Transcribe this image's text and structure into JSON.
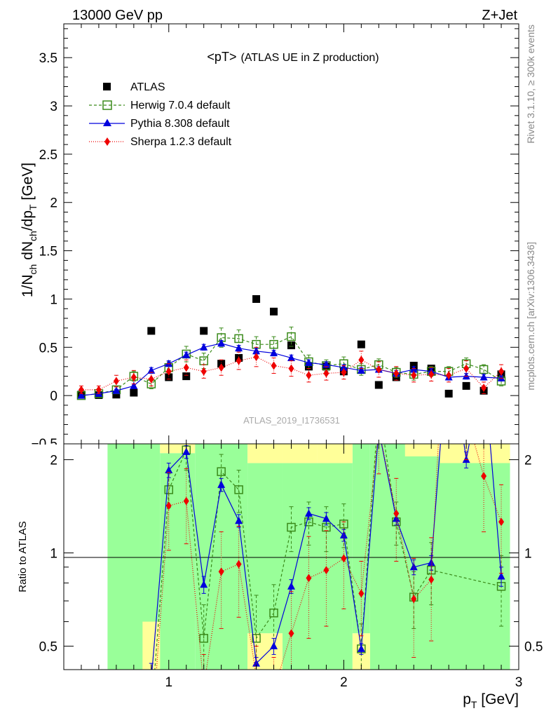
{
  "header": {
    "energy_label": "13000 GeV pp",
    "process_label": "Z+Jet"
  },
  "side_text": {
    "rivet": "Rivet 3.1.10, ≥ 300k events",
    "mcplots": "mcplots.cern.ch [arXiv:1306.3436]"
  },
  "analysis_id": "ATLAS_2019_I1736531",
  "colors": {
    "atlas": "#000000",
    "herwig": "#3a8a1a",
    "pythia": "#0000dd",
    "sherpa": "#ee0000",
    "band_green": "#99ff99",
    "band_yellow": "#ffff99"
  },
  "chart_data": [
    {
      "type": "line",
      "title": "<pT> (ATLAS UE in Z production)",
      "title_main": "<pT>",
      "title_sub": "(ATLAS UE in Z production)",
      "ylabel": "1/N_ch dN_ch/dp_T [GeV]",
      "ylabel_parts": {
        "main": "1/N",
        "s1": "ch",
        "mid": " dN",
        "s2": "ch",
        "mid2": "/dp",
        "s3": "T",
        "unit": " [GeV]"
      },
      "xlim": [
        0.4,
        3.0
      ],
      "ylim": [
        -0.5,
        3.85
      ],
      "yticks": [
        0,
        0.5,
        1,
        1.5,
        2,
        2.5,
        3,
        3.5
      ],
      "yticklabels": [
        "0",
        "0.5",
        "1",
        "1.5",
        "2",
        "2.5",
        "3",
        "3.5"
      ],
      "x": [
        0.5,
        0.6,
        0.7,
        0.8,
        0.9,
        1.0,
        1.1,
        1.2,
        1.3,
        1.4,
        1.5,
        1.6,
        1.7,
        1.8,
        1.9,
        2.0,
        2.1,
        2.2,
        2.3,
        2.4,
        2.5,
        2.6,
        2.7,
        2.8,
        2.9
      ],
      "series": [
        {
          "name": "ATLAS",
          "key": "atlas",
          "style": "marker",
          "values": [
            0.01,
            0.005,
            0.01,
            0.03,
            0.67,
            0.19,
            0.2,
            0.67,
            0.33,
            0.39,
            1.0,
            0.87,
            0.52,
            0.3,
            0.3,
            0.25,
            0.53,
            0.11,
            0.19,
            0.31,
            0.28,
            0.02,
            0.1,
            0.05,
            0.22
          ]
        },
        {
          "name": "Herwig 7.0.4 default",
          "key": "herwig",
          "style": "dashed",
          "values": [
            0.0,
            0.02,
            0.06,
            0.2,
            0.12,
            0.29,
            0.43,
            0.36,
            0.6,
            0.59,
            0.53,
            0.53,
            0.61,
            0.35,
            0.31,
            0.33,
            0.27,
            0.32,
            0.24,
            0.22,
            0.25,
            0.25,
            0.33,
            0.27,
            0.15
          ],
          "errors": [
            0.01,
            0.02,
            0.03,
            0.05,
            0.05,
            0.06,
            0.08,
            0.08,
            0.1,
            0.09,
            0.08,
            0.08,
            0.1,
            0.07,
            0.06,
            0.07,
            0.06,
            0.06,
            0.05,
            0.06,
            0.05,
            0.05,
            0.06,
            0.05,
            0.05
          ]
        },
        {
          "name": "Pythia 8.308 default",
          "key": "pythia",
          "style": "solid",
          "values": [
            0.0,
            0.02,
            0.05,
            0.1,
            0.26,
            0.33,
            0.42,
            0.5,
            0.54,
            0.49,
            0.46,
            0.44,
            0.39,
            0.34,
            0.32,
            0.29,
            0.26,
            0.27,
            0.23,
            0.27,
            0.25,
            0.19,
            0.2,
            0.19,
            0.18
          ],
          "errors": [
            0.005,
            0.01,
            0.015,
            0.02,
            0.03,
            0.03,
            0.03,
            0.03,
            0.03,
            0.03,
            0.03,
            0.03,
            0.03,
            0.03,
            0.03,
            0.03,
            0.03,
            0.03,
            0.03,
            0.03,
            0.03,
            0.03,
            0.03,
            0.03,
            0.03
          ]
        },
        {
          "name": "Sherpa 1.2.3 default",
          "key": "sherpa",
          "style": "dotted",
          "values": [
            0.06,
            0.06,
            0.15,
            0.19,
            0.17,
            0.25,
            0.29,
            0.25,
            0.29,
            0.36,
            0.4,
            0.31,
            0.28,
            0.21,
            0.23,
            0.24,
            0.37,
            0.27,
            0.23,
            0.21,
            0.22,
            0.21,
            0.28,
            0.08,
            0.25
          ],
          "errors": [
            0.04,
            0.04,
            0.06,
            0.07,
            0.07,
            0.08,
            0.08,
            0.07,
            0.08,
            0.09,
            0.1,
            0.08,
            0.08,
            0.07,
            0.07,
            0.07,
            0.09,
            0.08,
            0.07,
            0.07,
            0.07,
            0.07,
            0.08,
            0.06,
            0.07
          ]
        }
      ],
      "legend_position": "top-left",
      "grid": false
    },
    {
      "type": "line",
      "ylabel": "Ratio to ATLAS",
      "xlabel": "p_T [GeV]",
      "xlabel_parts": {
        "main": "p",
        "sub": "T",
        "unit": " [GeV]"
      },
      "xlim": [
        0.4,
        3.0
      ],
      "ylim": [
        0.42,
        2.25
      ],
      "ylog": true,
      "xticks": [
        1,
        2,
        3
      ],
      "xticklabels": [
        "1",
        "2",
        "3"
      ],
      "yticks": [
        0.5,
        1,
        2
      ],
      "yticklabels": [
        "0.5",
        "1",
        "2"
      ],
      "reference_line": 1,
      "x": [
        0.5,
        0.6,
        0.7,
        0.8,
        0.9,
        1.0,
        1.1,
        1.2,
        1.3,
        1.4,
        1.5,
        1.6,
        1.7,
        1.8,
        1.9,
        2.0,
        2.1,
        2.2,
        2.3,
        2.4,
        2.5,
        2.6,
        2.7,
        2.8,
        2.9
      ],
      "band_green": [
        [
          0.65,
          0.95,
          0.42,
          2.25
        ],
        [
          0.95,
          1.15,
          0.42,
          2.1
        ],
        [
          1.15,
          1.45,
          0.42,
          2.25
        ],
        [
          1.45,
          1.65,
          0.55,
          1.95
        ],
        [
          1.65,
          2.05,
          0.42,
          1.95
        ],
        [
          2.05,
          2.15,
          0.55,
          2.25
        ],
        [
          2.15,
          2.95,
          0.42,
          2.25
        ]
      ],
      "band_yellow": [
        [
          0.85,
          0.95,
          0.42,
          0.6
        ],
        [
          0.95,
          1.15,
          2.1,
          2.25
        ],
        [
          1.45,
          1.65,
          0.42,
          0.55
        ],
        [
          1.45,
          1.65,
          1.95,
          2.25
        ],
        [
          1.65,
          1.85,
          1.95,
          2.25
        ],
        [
          1.85,
          2.05,
          1.95,
          2.25
        ],
        [
          2.05,
          2.15,
          0.42,
          0.55
        ],
        [
          2.35,
          2.55,
          2.05,
          2.25
        ],
        [
          2.55,
          2.95,
          1.95,
          2.25
        ]
      ],
      "series": [
        {
          "name": "Herwig 7.0.4 default",
          "key": "herwig",
          "style": "dashed",
          "values": [
            null,
            null,
            null,
            null,
            0.3,
            1.6,
            2.15,
            0.53,
            1.83,
            1.6,
            0.53,
            0.64,
            1.21,
            1.26,
            1.21,
            1.24,
            0.49,
            3.0,
            1.26,
            0.72,
            0.88,
            null,
            null,
            null,
            0.78
          ],
          "errors": [
            0,
            0,
            0,
            0,
            0.1,
            0.2,
            0.3,
            0.15,
            0.25,
            0.25,
            0.2,
            0.15,
            0.2,
            0.2,
            0.2,
            0.2,
            0.1,
            0.5,
            0.2,
            0.15,
            0.2,
            0,
            0,
            0,
            0.2
          ]
        },
        {
          "name": "Pythia 8.308 default",
          "key": "pythia",
          "style": "solid",
          "values": [
            null,
            null,
            null,
            null,
            0.39,
            1.85,
            2.12,
            0.79,
            1.66,
            1.27,
            0.44,
            0.5,
            0.78,
            1.34,
            1.29,
            1.14,
            0.49,
            2.5,
            1.29,
            0.9,
            0.93,
            5.0,
            2.0,
            4.0,
            0.84
          ],
          "errors": [
            0,
            0,
            0,
            0,
            0.05,
            0.1,
            0.1,
            0.05,
            0.08,
            0.06,
            0.02,
            0.03,
            0.04,
            0.06,
            0.06,
            0.05,
            0.02,
            0.12,
            0.06,
            0.05,
            0.05,
            0.2,
            0.12,
            0.2,
            0.06
          ]
        },
        {
          "name": "Sherpa 1.2.3 default",
          "key": "sherpa",
          "style": "dotted",
          "values": [
            null,
            null,
            null,
            null,
            0.25,
            1.42,
            1.47,
            0.37,
            0.87,
            0.92,
            0.4,
            0.36,
            0.55,
            0.83,
            0.88,
            0.96,
            0.74,
            2.5,
            1.34,
            0.71,
            0.82,
            10.0,
            2.8,
            1.77,
            1.26
          ],
          "errors": [
            0,
            0,
            0,
            0,
            0.1,
            0.4,
            0.4,
            0.1,
            0.3,
            0.3,
            0.1,
            0.1,
            0.2,
            0.3,
            0.3,
            0.3,
            0.2,
            0.7,
            0.4,
            0.25,
            0.3,
            0,
            0.8,
            0.6,
            0.4
          ]
        }
      ]
    }
  ]
}
